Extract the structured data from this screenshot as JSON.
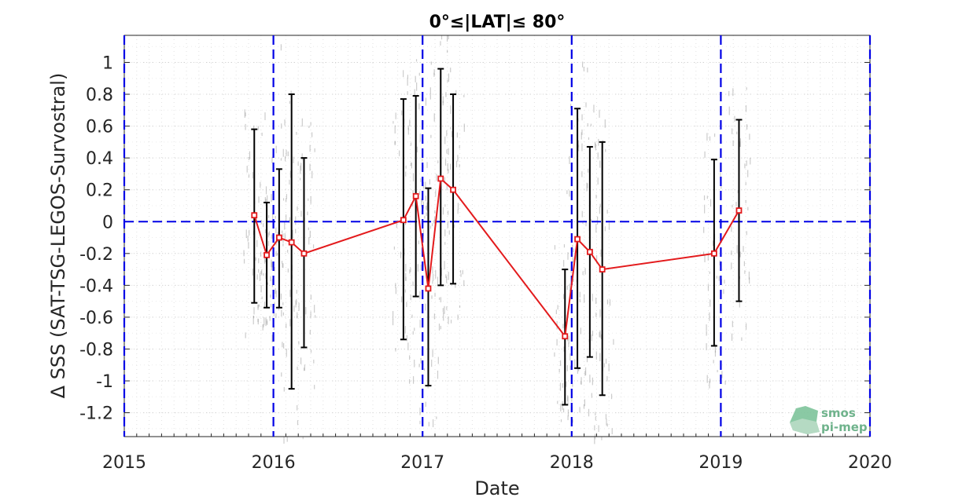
{
  "chart_data": {
    "type": "line",
    "title": "0°≤|LAT|≤ 80°",
    "xlabel": "Date",
    "ylabel": "Δ SSS (SAT-TSG-LEGOS-Survostral)",
    "xlim": [
      2015,
      2020
    ],
    "ylim": [
      -1.35,
      1.17
    ],
    "xticks": [
      "2015",
      "2016",
      "2017",
      "2018",
      "2019",
      "2020"
    ],
    "yticks": [
      "1",
      "0.8",
      "0.6",
      "0.4",
      "0.2",
      "0",
      "-0.2",
      "-0.4",
      "-0.6",
      "-0.8",
      "-1",
      "-1.2"
    ],
    "grid": true,
    "reference_line_y": 0,
    "year_boundaries": [
      2015,
      2016,
      2017,
      2018,
      2019,
      2020
    ],
    "series": [
      {
        "color": "#e31a1c",
        "points": [
          {
            "x": "2015-11-15",
            "y": 0.04,
            "low": -0.51,
            "high": 0.58
          },
          {
            "x": "2015-12-15",
            "y": -0.21,
            "low": -0.54,
            "high": 0.12
          },
          {
            "x": "2016-01-15",
            "y": -0.1,
            "low": -0.54,
            "high": 0.33
          },
          {
            "x": "2016-02-15",
            "y": -0.13,
            "low": -1.05,
            "high": 0.8
          },
          {
            "x": "2016-03-15",
            "y": -0.2,
            "low": -0.79,
            "high": 0.4
          },
          {
            "x": "2016-11-15",
            "y": 0.01,
            "low": -0.74,
            "high": 0.77
          },
          {
            "x": "2016-12-15",
            "y": 0.16,
            "low": -0.47,
            "high": 0.79
          },
          {
            "x": "2017-01-15",
            "y": -0.42,
            "low": -1.03,
            "high": 0.21
          },
          {
            "x": "2017-02-15",
            "y": 0.27,
            "low": -0.4,
            "high": 0.96
          },
          {
            "x": "2017-03-15",
            "y": 0.2,
            "low": -0.39,
            "high": 0.8
          },
          {
            "x": "2017-12-15",
            "y": -0.72,
            "low": -1.15,
            "high": -0.3
          },
          {
            "x": "2018-01-15",
            "y": -0.11,
            "low": -0.92,
            "high": 0.71
          },
          {
            "x": "2018-02-15",
            "y": -0.19,
            "low": -0.85,
            "high": 0.47
          },
          {
            "x": "2018-03-15",
            "y": -0.3,
            "low": -1.09,
            "high": 0.5
          },
          {
            "x": "2018-12-15",
            "y": -0.2,
            "low": -0.78,
            "high": 0.39
          },
          {
            "x": "2019-02-15",
            "y": 0.07,
            "low": -0.5,
            "high": 0.64
          }
        ]
      }
    ]
  },
  "logo": {
    "line1": "smos",
    "line2": "pi-mep",
    "color": "#6fb38c"
  }
}
